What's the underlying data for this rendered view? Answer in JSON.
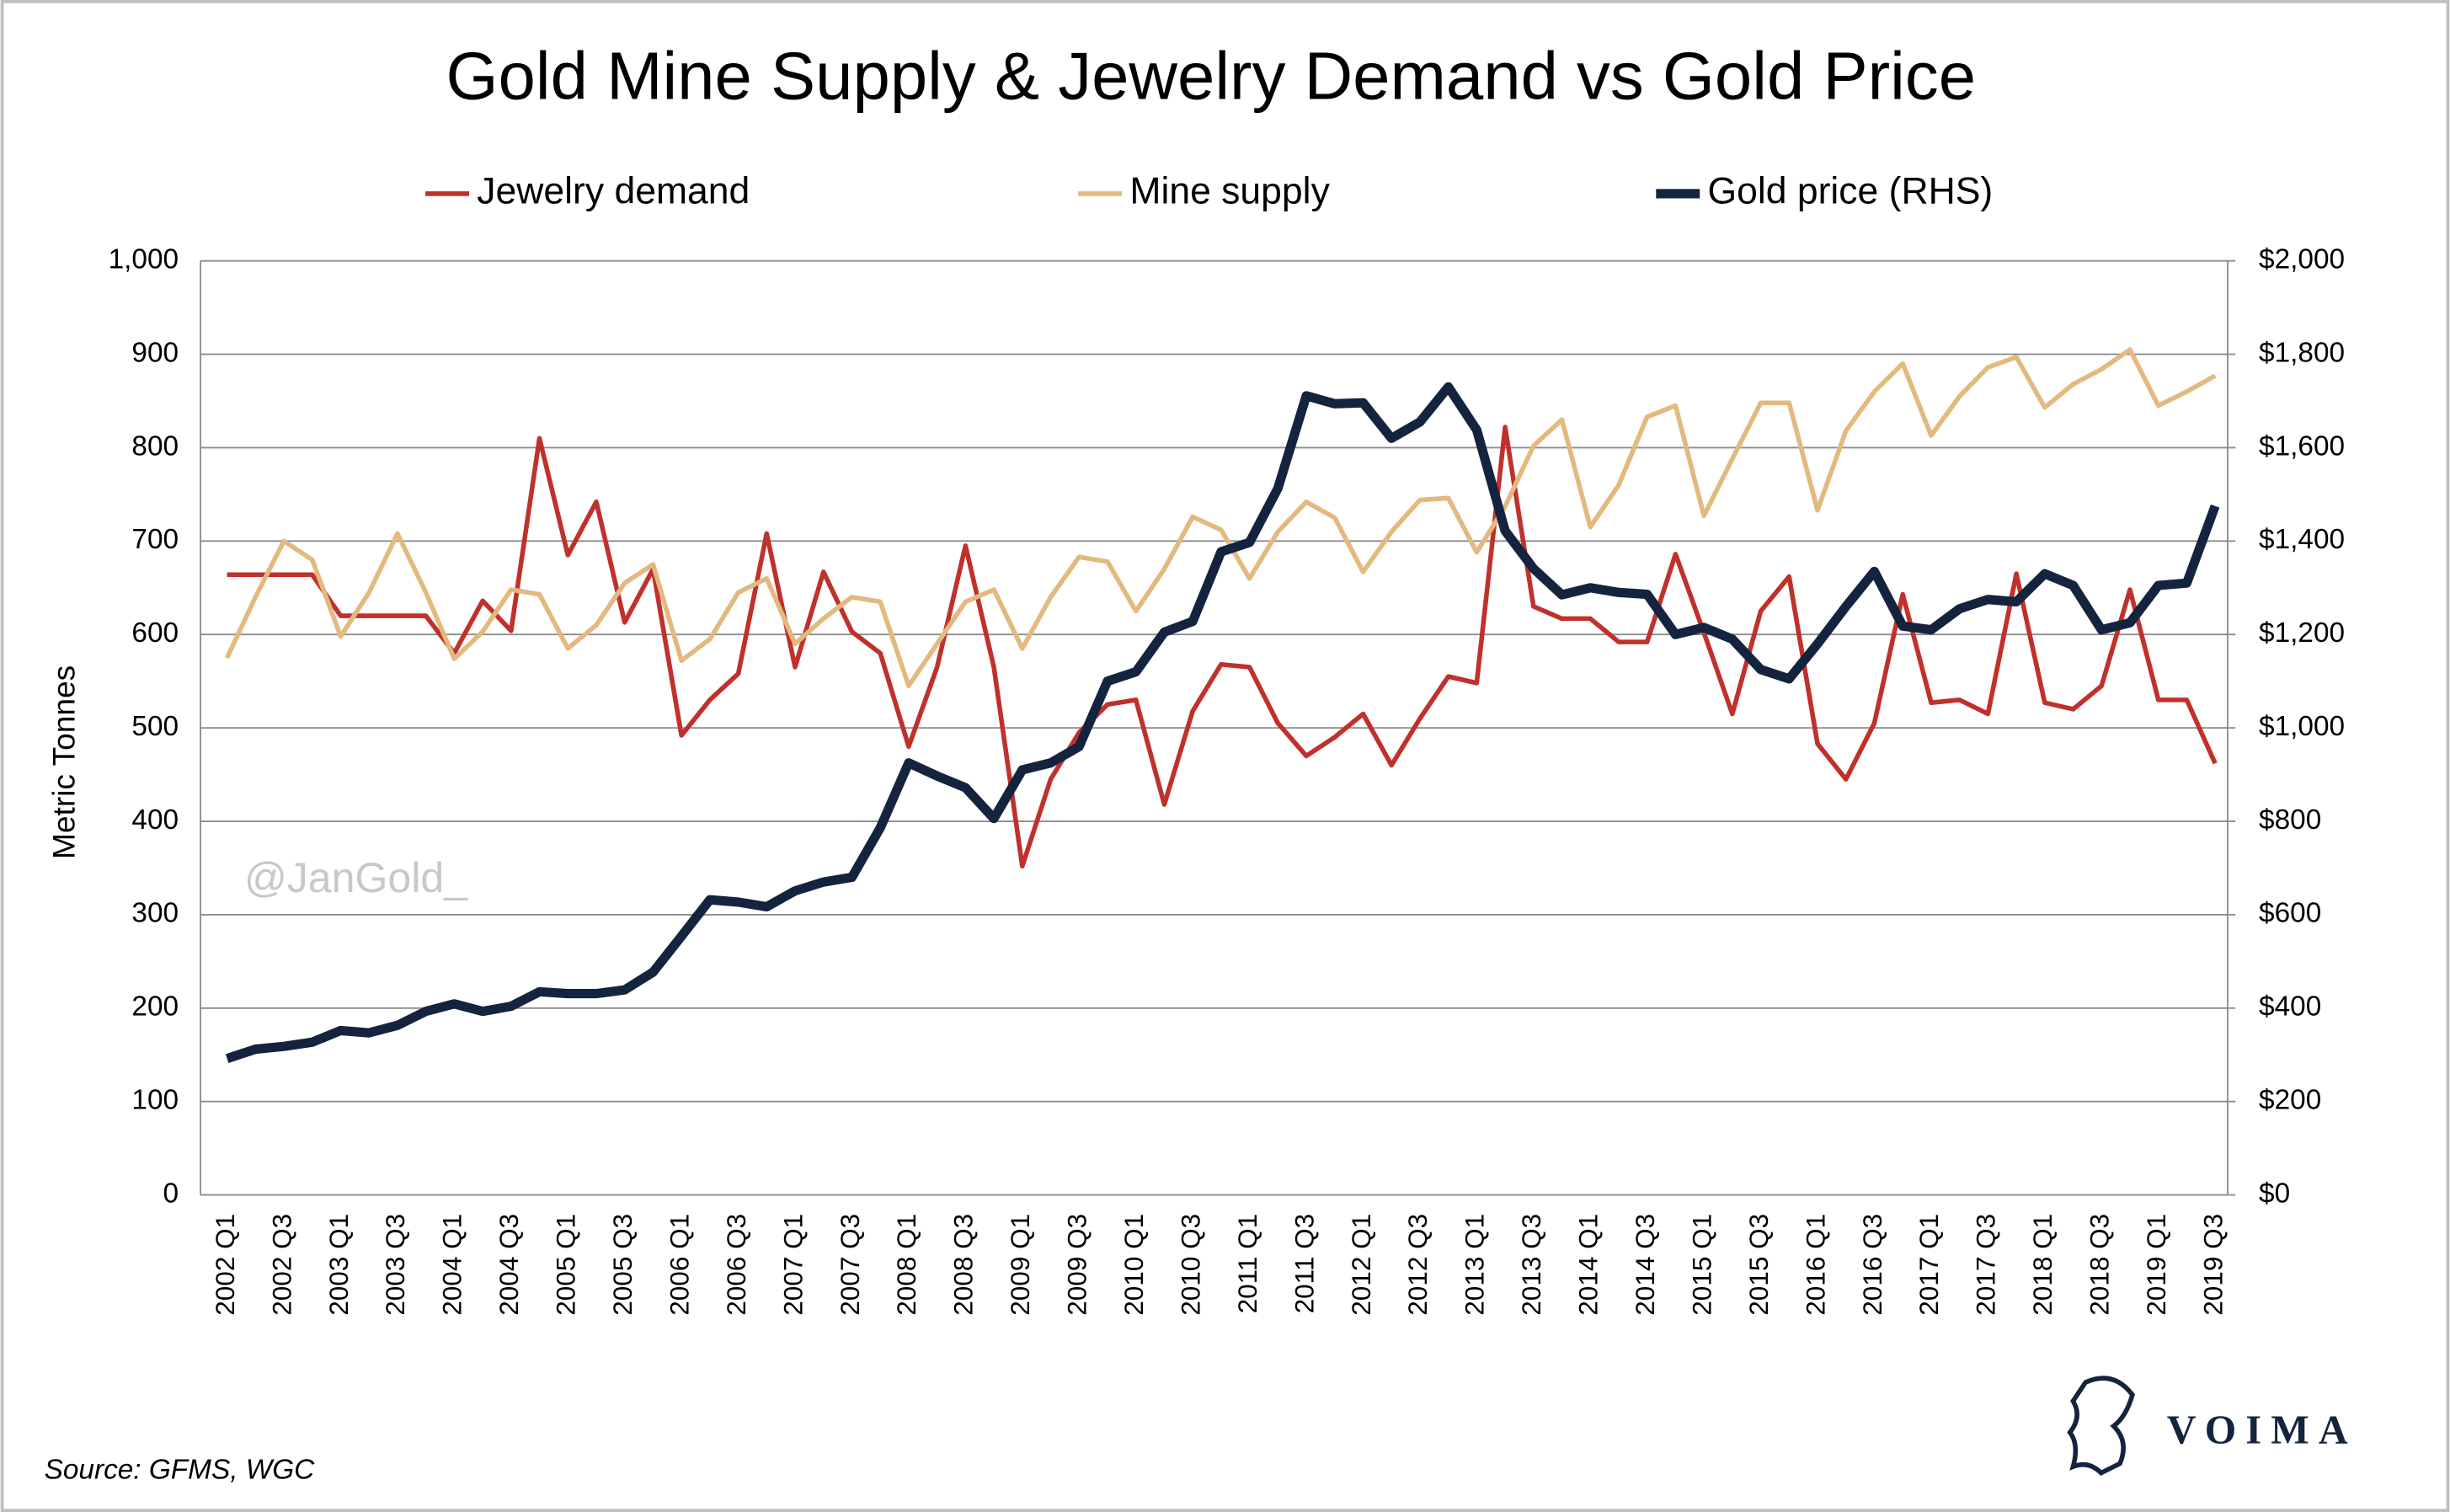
{
  "chart_data": {
    "type": "line",
    "title": "Gold Mine Supply & Jewelry Demand vs Gold Price",
    "y_label": "Metric Tonnes",
    "watermark": "@JanGold_",
    "source": "Source: GFMS, WGC",
    "logo_text": "VOIMA",
    "categories": [
      "2002 Q1",
      null,
      "2002 Q3",
      null,
      "2003 Q1",
      null,
      "2003 Q3",
      null,
      "2004 Q1",
      null,
      "2004 Q3",
      null,
      "2005 Q1",
      null,
      "2005 Q3",
      null,
      "2006 Q1",
      null,
      "2006 Q3",
      null,
      "2007 Q1",
      null,
      "2007 Q3",
      null,
      "2008 Q1",
      null,
      "2008 Q3",
      null,
      "2009 Q1",
      null,
      "2009 Q3",
      null,
      "2010 Q1",
      null,
      "2010 Q3",
      null,
      "2011 Q1",
      null,
      "2011 Q3",
      null,
      "2012 Q1",
      null,
      "2012 Q3",
      null,
      "2013 Q1",
      null,
      "2013 Q3",
      null,
      "2014 Q1",
      null,
      "2014 Q3",
      null,
      "2015 Q1",
      null,
      "2015 Q3",
      null,
      "2016 Q1",
      null,
      "2016 Q3",
      null,
      "2017 Q1",
      null,
      "2017 Q3",
      null,
      "2018 Q1",
      null,
      "2018 Q3",
      null,
      "2019 Q1",
      null,
      "2019 Q3"
    ],
    "series": [
      {
        "name": "Jewelry demand",
        "color": "#c0312b",
        "width": 3,
        "values": [
          664,
          664,
          664,
          664,
          620,
          620,
          620,
          620,
          580,
          636,
          604,
          810,
          685,
          742,
          613,
          670,
          492,
          530,
          558,
          708,
          565,
          667,
          603,
          580,
          480,
          565,
          695,
          565,
          352,
          445,
          495,
          525,
          530,
          418,
          518,
          568,
          565,
          505,
          470,
          490,
          515,
          460,
          510,
          555,
          548,
          822,
          630,
          617,
          617,
          592,
          592,
          686,
          602,
          515,
          625,
          662,
          483,
          445,
          505,
          643,
          527,
          530,
          515,
          665,
          527,
          520,
          545,
          648,
          530,
          530,
          462
        ]
      },
      {
        "name": "Mine supply",
        "color": "#e3b97f",
        "width": 3,
        "values": [
          575,
          640,
          700,
          680,
          598,
          645,
          708,
          645,
          574,
          603,
          648,
          643,
          585,
          610,
          655,
          675,
          572,
          595,
          645,
          660,
          590,
          617,
          640,
          635,
          545,
          590,
          635,
          648,
          585,
          640,
          683,
          678,
          625,
          670,
          726,
          712,
          660,
          710,
          742,
          725,
          667,
          710,
          744,
          746,
          688,
          737,
          802,
          830,
          715,
          760,
          833,
          845,
          727,
          788,
          848,
          848,
          733,
          818,
          860,
          890,
          813,
          855,
          886,
          897,
          843,
          868,
          884,
          905,
          845,
          860,
          877
        ]
      },
      {
        "name": "Gold price (RHS)",
        "color": "#14243f",
        "width": 6,
        "axis": "y2",
        "values": [
          292,
          312,
          318,
          327,
          352,
          347,
          363,
          393,
          409,
          393,
          404,
          435,
          431,
          431,
          439,
          477,
          554,
          632,
          627,
          617,
          651,
          670,
          680,
          786,
          925,
          897,
          872,
          806,
          910,
          925,
          960,
          1100,
          1120,
          1205,
          1228,
          1377,
          1397,
          1513,
          1711,
          1694,
          1696,
          1620,
          1655,
          1730,
          1638,
          1422,
          1341,
          1285,
          1300,
          1290,
          1286,
          1200,
          1215,
          1190,
          1125,
          1105,
          1180,
          1260,
          1335,
          1218,
          1210,
          1255,
          1275,
          1270,
          1330,
          1305,
          1210,
          1225,
          1305,
          1310,
          1475
        ]
      }
    ],
    "ylim": [
      0,
      1000
    ],
    "yticks": [
      0,
      100,
      200,
      300,
      400,
      500,
      600,
      700,
      800,
      900,
      {
        "value": 1000,
        "label": "1,000"
      }
    ],
    "y2lim": [
      0,
      2000
    ],
    "y2ticks": [
      {
        "value": 0,
        "label": "$0"
      },
      {
        "value": 200,
        "label": "$200"
      },
      {
        "value": 400,
        "label": "$400"
      },
      {
        "value": 600,
        "label": "$600"
      },
      {
        "value": 800,
        "label": "$800"
      },
      {
        "value": 1000,
        "label": "$1,000"
      },
      {
        "value": 1200,
        "label": "$1,200"
      },
      {
        "value": 1400,
        "label": "$1,400"
      },
      {
        "value": 1600,
        "label": "$1,600"
      },
      {
        "value": 1800,
        "label": "$1,800"
      },
      {
        "value": 2000,
        "label": "$2,000"
      }
    ],
    "grid": true,
    "legend": "top"
  }
}
